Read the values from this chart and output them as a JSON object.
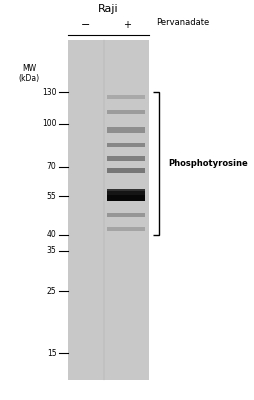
{
  "title": "Raji",
  "pervanadate_label": "Pervanadate",
  "lane_minus": "−",
  "lane_plus": "+",
  "mw_label": "MW\n(kDa)",
  "mw_markers": [
    130,
    100,
    70,
    55,
    40,
    35,
    25,
    15
  ],
  "phosphotyrosine_label": "Phosphotyrosine",
  "gel_bg": "#c8c8c8",
  "figure_bg": "#ffffff"
}
